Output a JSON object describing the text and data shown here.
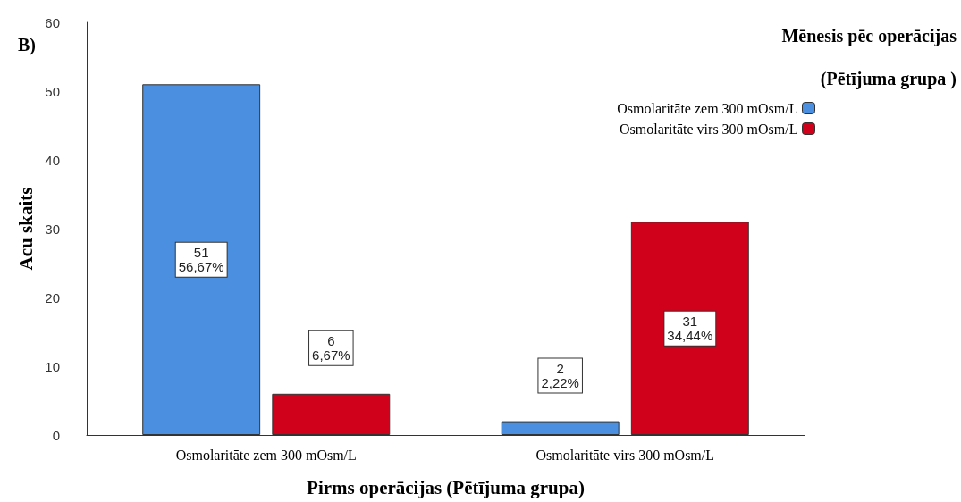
{
  "chart_data": {
    "type": "bar",
    "annotations": [
      "B)"
    ],
    "xlabel": "Pirms operācijas (Pētījuma grupa)",
    "ylabel": "Acu skaits",
    "legend_title": "Mēnesis pēc operācijas\n\n(Pētījuma grupa )",
    "categories": [
      "Osmolaritāte zem 300 mOsm/L",
      "Osmolaritāte virs 300 mOsm/L"
    ],
    "series": [
      {
        "name": "Osmolaritāte zem 300 mOsm/L",
        "color": "#4a8fe0",
        "values": [
          51,
          2
        ],
        "value_labels": [
          "51\n56,67%",
          "2\n2,22%"
        ]
      },
      {
        "name": "Osmolaritāte virs 300 mOsm/L",
        "color": "#d0021b",
        "values": [
          6,
          31
        ],
        "value_labels": [
          "6\n6,67%",
          "31\n34,44%"
        ]
      }
    ],
    "ylim": [
      0,
      60
    ],
    "yticks": [
      0,
      10,
      20,
      30,
      40,
      50,
      60
    ],
    "grid": false,
    "legend": "top right"
  }
}
